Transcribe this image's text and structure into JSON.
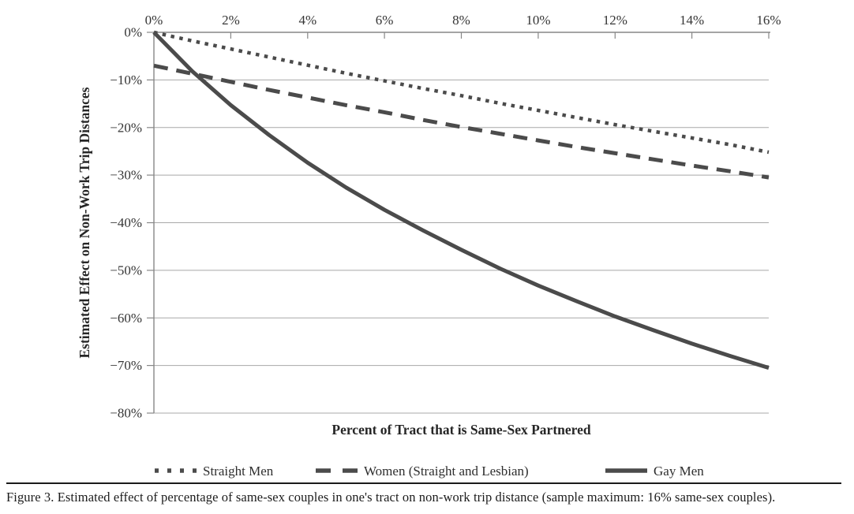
{
  "figure": {
    "caption": "Figure 3. Estimated effect of percentage of same-sex couples in one's tract on non-work trip distance (sample maximum: 16% same-sex couples)."
  },
  "chart_data": {
    "type": "line",
    "title": "",
    "xlabel": "Percent of Tract that is Same-Sex Partnered",
    "ylabel": "Estimated Effect on Non-Work Trip Distances",
    "xlim": [
      0,
      16
    ],
    "ylim": [
      -80,
      0
    ],
    "grid": "horizontal-only",
    "legend_position": "bottom",
    "x_axis_position": "top",
    "line_color": "#4b4b4b",
    "x_ticks": [
      0,
      2,
      4,
      6,
      8,
      10,
      12,
      14,
      16
    ],
    "x_tick_labels": [
      "0%",
      "2%",
      "4%",
      "6%",
      "8%",
      "10%",
      "12%",
      "14%",
      "16%"
    ],
    "y_ticks": [
      0,
      -10,
      -20,
      -30,
      -40,
      -50,
      -60,
      -70,
      -80
    ],
    "y_tick_labels": [
      "0%",
      "−10%",
      "−20%",
      "−30%",
      "−40%",
      "−50%",
      "−60%",
      "−70%",
      "−80%"
    ],
    "x": [
      0,
      1,
      2,
      3,
      4,
      5,
      6,
      7,
      8,
      9,
      10,
      11,
      12,
      13,
      14,
      15,
      16
    ],
    "series": [
      {
        "name": "Straight Men",
        "line_style": "dotted",
        "values": [
          0,
          -1.8,
          -3.5,
          -5.2,
          -6.9,
          -8.6,
          -10.2,
          -11.8,
          -13.3,
          -14.9,
          -16.4,
          -17.9,
          -19.4,
          -20.8,
          -22.2,
          -23.6,
          -25.2
        ]
      },
      {
        "name": "Women (Straight and Lesbian)",
        "line_style": "dashed",
        "values": [
          -7.0,
          -8.7,
          -10.4,
          -12.1,
          -13.7,
          -15.3,
          -16.8,
          -18.4,
          -19.9,
          -21.3,
          -22.7,
          -24.1,
          -25.4,
          -26.7,
          -28.0,
          -29.2,
          -30.5
        ]
      },
      {
        "name": "Gay Men",
        "line_style": "solid",
        "values": [
          0,
          -8.2,
          -15.3,
          -21.6,
          -27.4,
          -32.6,
          -37.3,
          -41.6,
          -45.7,
          -49.6,
          -53.2,
          -56.5,
          -59.7,
          -62.6,
          -65.4,
          -68.0,
          -70.5
        ]
      }
    ]
  }
}
